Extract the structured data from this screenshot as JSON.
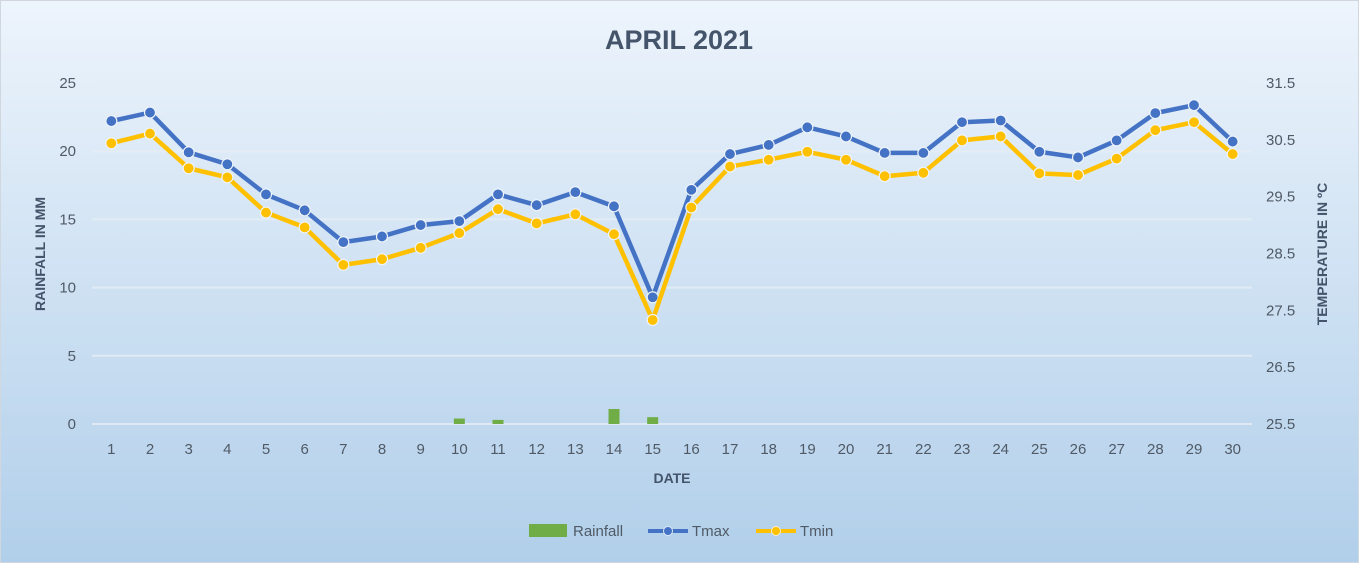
{
  "chart_data": {
    "type": "line",
    "title": "APRIL 2021",
    "xlabel": "DATE",
    "ylabel": "RAINFALL IN MM",
    "y2label": "TEMPERATURE IN ºC",
    "ylim": [
      0,
      25
    ],
    "y2lim": [
      25.5,
      31.5
    ],
    "yticks": [
      "0",
      "5",
      "10",
      "15",
      "20",
      "25"
    ],
    "y2ticks": [
      "25.5",
      "26.5",
      "27.5",
      "28.5",
      "29.5",
      "30.5",
      "31.5"
    ],
    "categories": [
      "1",
      "2",
      "3",
      "4",
      "5",
      "6",
      "7",
      "8",
      "9",
      "10",
      "11",
      "12",
      "13",
      "14",
      "15",
      "16",
      "17",
      "18",
      "19",
      "20",
      "21",
      "22",
      "23",
      "24",
      "25",
      "26",
      "27",
      "28",
      "29",
      "30"
    ],
    "grid": true,
    "legend_position": "bottom",
    "series": [
      {
        "name": "Rainfall",
        "type": "bar",
        "axis": "left",
        "color": "#70ad47",
        "values": [
          0,
          0,
          0,
          0,
          0,
          0,
          0,
          0,
          0,
          0.4,
          0.3,
          0,
          0,
          1.1,
          0.5,
          0,
          0,
          0,
          0,
          0,
          0,
          0,
          0,
          0,
          0,
          0,
          0,
          0,
          0,
          0
        ]
      },
      {
        "name": "Tmax",
        "type": "line",
        "axis": "right",
        "color": "#4472c4",
        "values": [
          30.83,
          30.98,
          30.28,
          30.07,
          29.54,
          29.26,
          28.7,
          28.8,
          29.0,
          29.07,
          29.54,
          29.35,
          29.58,
          29.33,
          27.73,
          29.62,
          30.25,
          30.41,
          30.72,
          30.56,
          30.27,
          30.27,
          30.81,
          30.84,
          30.29,
          30.19,
          30.49,
          30.97,
          31.11,
          30.47
        ]
      },
      {
        "name": "Tmin",
        "type": "line",
        "axis": "right",
        "color": "#ffc000",
        "values": [
          30.44,
          30.61,
          30.0,
          29.84,
          29.22,
          28.96,
          28.3,
          28.4,
          28.6,
          28.86,
          29.28,
          29.03,
          29.19,
          28.84,
          27.33,
          29.31,
          30.03,
          30.15,
          30.29,
          30.15,
          29.86,
          29.92,
          30.49,
          30.56,
          29.91,
          29.88,
          30.17,
          30.67,
          30.81,
          30.25
        ]
      }
    ]
  }
}
